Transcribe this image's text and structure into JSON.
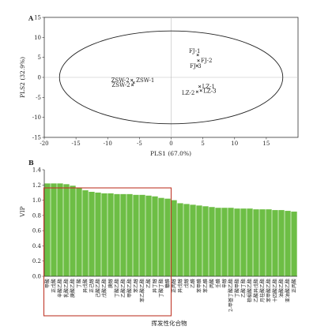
{
  "chart_data": [
    {
      "type": "scatter",
      "panel_label": "A",
      "xlabel": "PLS1 (67.0%)",
      "ylabel": "PLS2 (32.9%)",
      "xlim": [
        -20,
        20
      ],
      "ylim": [
        -15,
        15
      ],
      "xticks": [
        -20,
        -15,
        -10,
        -5,
        0,
        5,
        10,
        15
      ],
      "yticks": [
        -15,
        -10,
        -5,
        0,
        5,
        10,
        15
      ],
      "reference_lines": {
        "x": 0,
        "y": 0
      },
      "confidence_ellipse": {
        "center": [
          0,
          0
        ],
        "radius_x": 17.6,
        "radius_y": 11.6
      },
      "grid": false,
      "points": [
        {
          "label": "FJ-1",
          "x": 4.2,
          "y": 5.6
        },
        {
          "label": "FJ-2",
          "x": 4.3,
          "y": 4.2
        },
        {
          "label": "FJ-3",
          "x": 4.1,
          "y": 2.9
        },
        {
          "label": "ZSW-2",
          "x": -6.2,
          "y": -0.7
        },
        {
          "label": "ZSW-1",
          "x": -5.9,
          "y": -1.3
        },
        {
          "label": "ZSW-2",
          "x": -6.1,
          "y": -1.9
        },
        {
          "label": "LZ-1",
          "x": 4.5,
          "y": -2.3
        },
        {
          "label": "LZ-2",
          "x": 4.1,
          "y": -3.6
        },
        {
          "label": "LZ-3",
          "x": 4.7,
          "y": -3.3
        }
      ]
    },
    {
      "type": "bar",
      "panel_label": "B",
      "xlabel": "挥发性化合物",
      "ylabel": "VIP",
      "ylim": [
        0,
        1.4
      ],
      "yticks": [
        0,
        0.2,
        0.4,
        0.6,
        0.8,
        1.0,
        1.2,
        1.4
      ],
      "bar_color": "#6dbe45",
      "highlight_box": {
        "from_index": 0,
        "to_index": 20,
        "color": "#c0392b"
      },
      "categories": [
        "甲酸",
        "正戊酸",
        "辛酸乙酯",
        "乳酸乙酯",
        "庚酸乙酯",
        "丁酸",
        "异戊酸",
        "正己醇",
        "己酸乙酯",
        "戊酸乙酯",
        "庚醇",
        "丁酸乙酯",
        "乙酸乙酯",
        "甲酸乙酯",
        "苯乙醇",
        "苯乙酸乙酯",
        "乙酸",
        "异丁醇",
        "丁酸丁酯",
        "糠醛",
        "正丙醇",
        "异戊醇",
        "戊醇",
        "乙醛",
        "苯甲醛",
        "苯乙醛",
        "丙酸",
        "壬醛",
        "辛醇",
        "2-甲基丁酸乙酯",
        "丁酸甲酯",
        "乙酸丁酯",
        "棕榈酸乙酯",
        "乙酸异戊酯",
        "月桂酸乙酯",
        "苯甲酸乙酯",
        "十四酸乙酯",
        "油酸乙酯",
        "亚油酸乙酯",
        "正丙酸"
      ],
      "values": [
        1.22,
        1.22,
        1.22,
        1.21,
        1.19,
        1.16,
        1.13,
        1.11,
        1.1,
        1.09,
        1.09,
        1.08,
        1.08,
        1.08,
        1.07,
        1.07,
        1.06,
        1.05,
        1.03,
        1.02,
        1.0,
        0.96,
        0.95,
        0.94,
        0.93,
        0.92,
        0.91,
        0.9,
        0.9,
        0.9,
        0.89,
        0.89,
        0.89,
        0.88,
        0.88,
        0.88,
        0.87,
        0.87,
        0.86,
        0.85
      ]
    }
  ]
}
